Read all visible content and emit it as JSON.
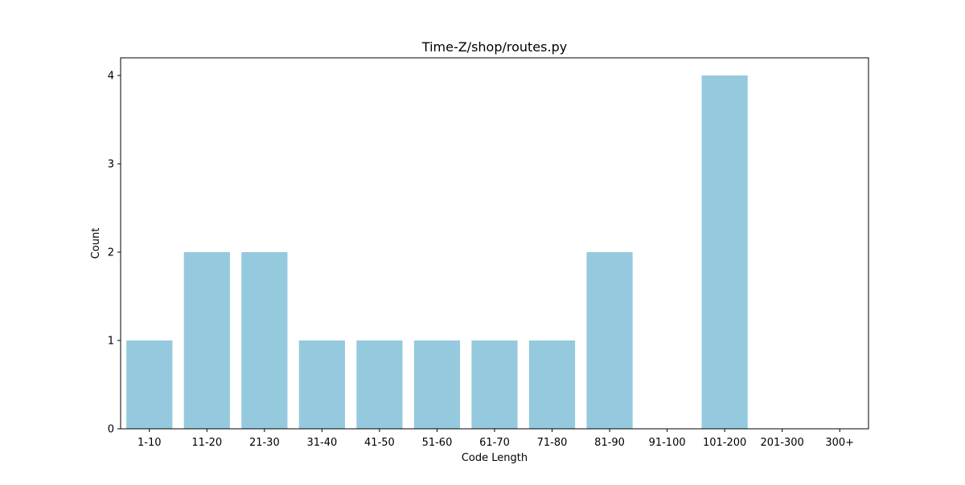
{
  "chart_data": {
    "type": "bar",
    "title": "Time-Z/shop/routes.py",
    "xlabel": "Code Length",
    "ylabel": "Count",
    "categories": [
      "1-10",
      "11-20",
      "21-30",
      "31-40",
      "41-50",
      "51-60",
      "61-70",
      "71-80",
      "81-90",
      "91-100",
      "101-200",
      "201-300",
      "300+"
    ],
    "values": [
      1,
      2,
      2,
      1,
      1,
      1,
      1,
      1,
      2,
      0,
      4,
      0,
      0
    ],
    "ylim": [
      0,
      4.2
    ],
    "yticks": [
      0,
      1,
      2,
      3,
      4
    ],
    "grid": false,
    "legend": "none",
    "bar_color": "#95c9de"
  }
}
